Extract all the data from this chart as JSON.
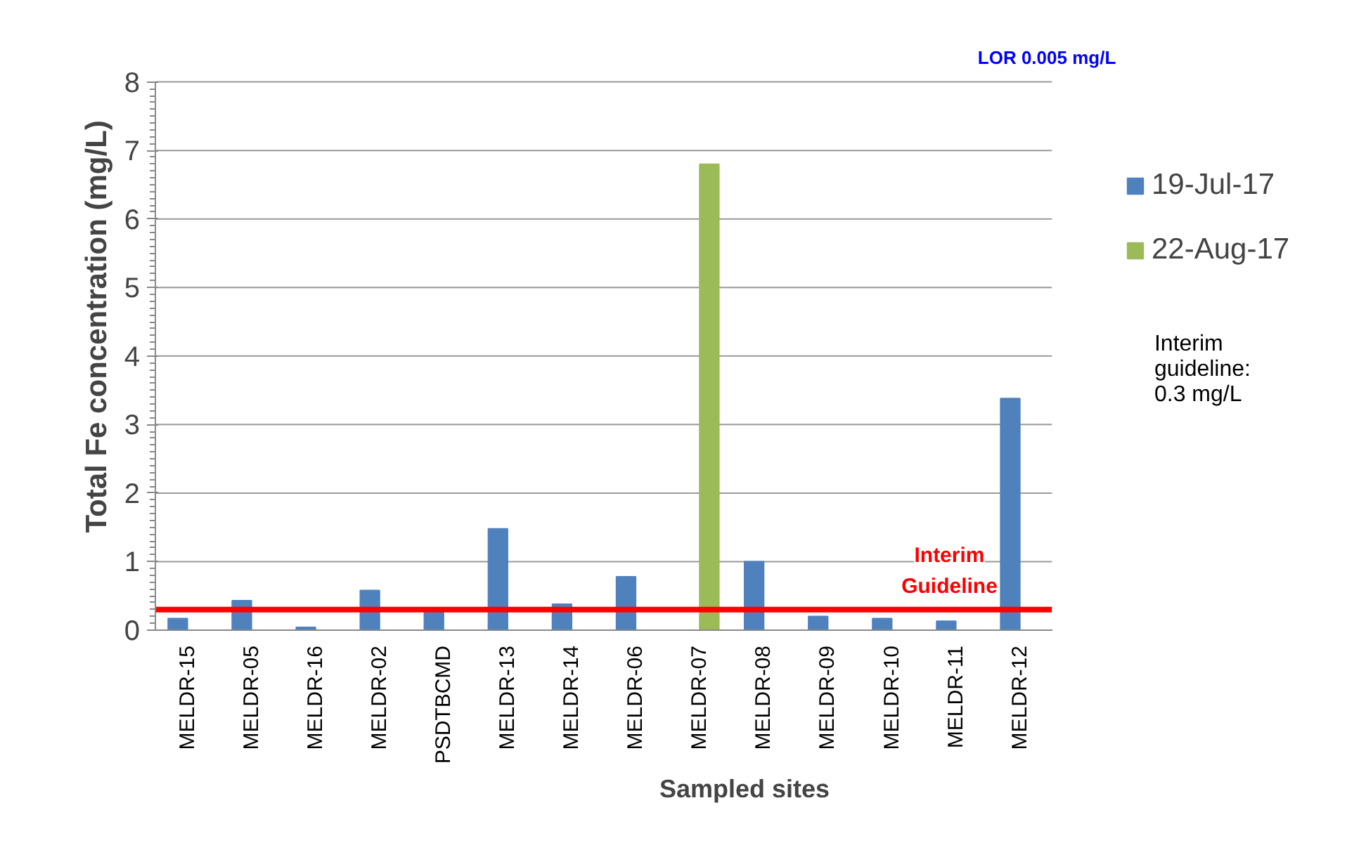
{
  "chart_data": {
    "type": "bar",
    "xlabel": "Sampled sites",
    "ylabel": "Total  Fe concentration (mg/L)",
    "categories": [
      "MELDR-15",
      "MELDR-05",
      "MELDR-16",
      "MELDR-02",
      "PSDTBCMD",
      "MELDR-13",
      "MELDR-14",
      "MELDR-06",
      "MELDR-07",
      "MELDR-08",
      "MELDR-09",
      "MELDR-10",
      "MELDR-11",
      "MELDR-12"
    ],
    "series": [
      {
        "name": "19-Jul-17",
        "color": "#4f81bd",
        "values": [
          0.17,
          0.43,
          0.04,
          0.58,
          0.3,
          1.48,
          0.38,
          0.78,
          null,
          1.0,
          0.2,
          0.17,
          0.13,
          3.38
        ]
      },
      {
        "name": "22-Aug-17",
        "color": "#9bbb59",
        "values": [
          null,
          null,
          null,
          null,
          null,
          null,
          null,
          null,
          6.8,
          null,
          null,
          null,
          null,
          null
        ]
      }
    ],
    "ylim": [
      0,
      8
    ],
    "yticks": [
      0,
      1,
      2,
      3,
      4,
      5,
      6,
      7,
      8
    ],
    "grid": "y",
    "legend": "right",
    "ref_lines": [
      {
        "axis": "y",
        "value": 0.3,
        "label": "Interim Guideline",
        "color": "#ff0000"
      }
    ],
    "annotations": [
      "LOR 0.005 mg/L",
      "Interim guideline: 0.3 mg/L"
    ]
  }
}
